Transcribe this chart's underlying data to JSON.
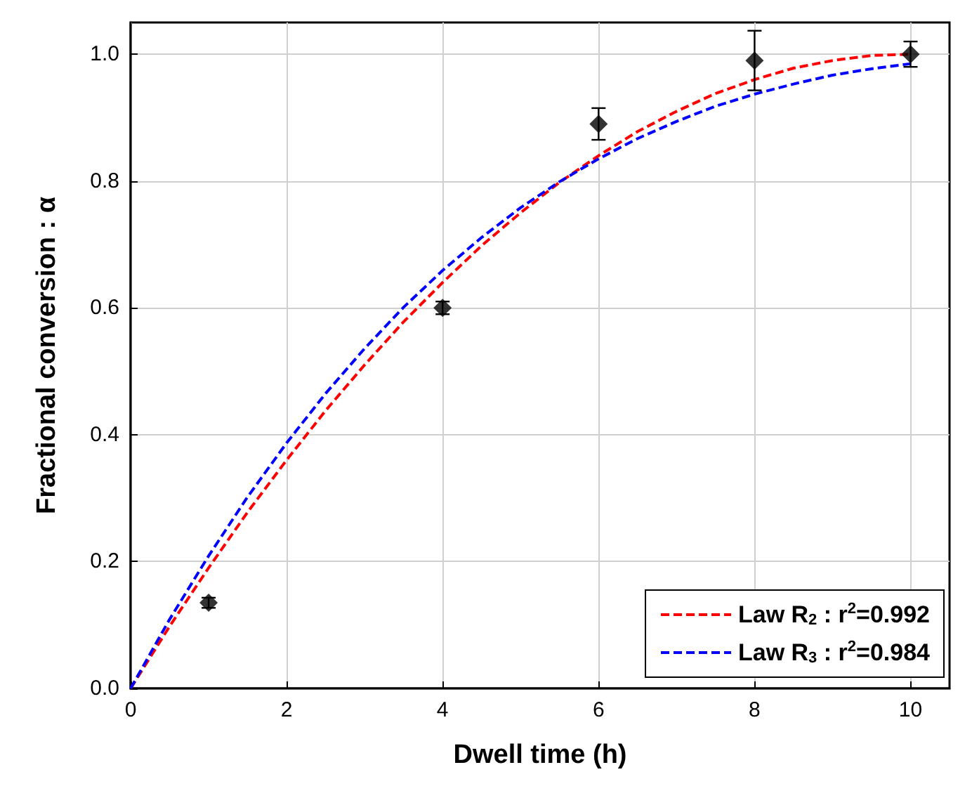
{
  "chart_data": {
    "type": "scatter",
    "xlabel": "Dwell time (h)",
    "ylabel": "Fractional conversion : α",
    "xlim": [
      0,
      10.5
    ],
    "xticks": [
      0,
      2,
      4,
      6,
      8,
      10
    ],
    "ylim": [
      0,
      1.05
    ],
    "yticks": [
      {
        "value": 0,
        "label": "0.0"
      },
      {
        "value": 0.2,
        "label": "0.2"
      },
      {
        "value": 0.4,
        "label": "0.4"
      },
      {
        "value": 0.6,
        "label": "0.6"
      },
      {
        "value": 0.8,
        "label": "0.8"
      },
      {
        "value": 1,
        "label": "1.0"
      }
    ],
    "grid": true,
    "legend": "bottom right",
    "series": [
      {
        "color": "#000000",
        "marker": "diamond",
        "x": [
          1,
          4,
          6,
          8,
          10
        ],
        "values": [
          0.135,
          0.6,
          0.89,
          0.99,
          1.0
        ],
        "errors": [
          0.008,
          0.01,
          0.025,
          0.047,
          0.02
        ]
      },
      {
        "type": "line",
        "name": "Law R$_{2}$ : r$^{2}$=0.992",
        "color": "#ff0000",
        "line_style": "dashed",
        "marker": "none",
        "x": [
          0,
          0.5,
          1,
          1.5,
          2,
          2.5,
          3,
          3.5,
          4,
          4.5,
          5,
          5.5,
          6,
          6.5,
          7,
          7.5,
          8,
          8.5,
          9,
          9.5,
          10
        ],
        "values": [
          0,
          0.098,
          0.19,
          0.278,
          0.36,
          0.438,
          0.51,
          0.578,
          0.64,
          0.698,
          0.75,
          0.798,
          0.84,
          0.878,
          0.91,
          0.938,
          0.96,
          0.978,
          0.99,
          0.998,
          1.0
        ]
      },
      {
        "type": "line",
        "name": "Law R$_{3}$ : r$^{2}$=0.984",
        "color": "#0000ff",
        "line_style": "dashed",
        "marker": "none",
        "x": [
          0,
          0.5,
          1,
          1.5,
          2,
          2.5,
          3,
          3.5,
          4,
          4.5,
          5,
          5.5,
          6,
          6.5,
          7,
          7.5,
          8,
          8.5,
          9,
          9.5,
          10
        ],
        "values": [
          0,
          0.109,
          0.209,
          0.302,
          0.387,
          0.465,
          0.536,
          0.601,
          0.659,
          0.711,
          0.758,
          0.799,
          0.835,
          0.867,
          0.894,
          0.918,
          0.937,
          0.953,
          0.967,
          0.977,
          0.985
        ]
      }
    ]
  }
}
